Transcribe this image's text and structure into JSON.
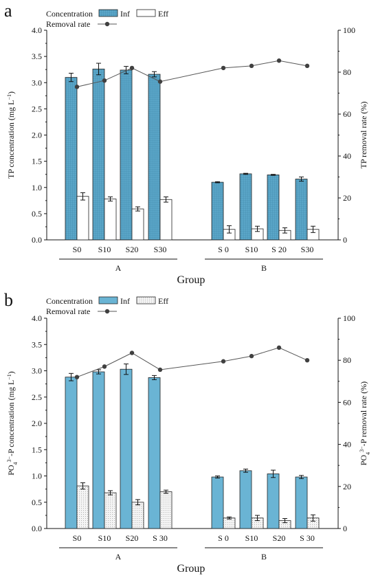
{
  "chart_data": [
    {
      "type": "bar",
      "panel_letter": "a",
      "legend_concentration": "Concentration",
      "legend_removal": "Removal rate",
      "groups": [
        "A",
        "B"
      ],
      "categories": [
        "S0",
        "S10",
        "S20",
        "S30",
        "S 0",
        "S10",
        "S 20",
        "S30"
      ],
      "series": [
        {
          "name": "Inf",
          "values": [
            3.1,
            3.26,
            3.24,
            3.16,
            1.1,
            1.26,
            1.24,
            1.16
          ],
          "errors": [
            0.08,
            0.11,
            0.07,
            0.05,
            0.01,
            0.01,
            0.01,
            0.04
          ]
        },
        {
          "name": "Eff",
          "values": [
            0.83,
            0.78,
            0.59,
            0.77,
            0.2,
            0.21,
            0.18,
            0.2
          ],
          "errors": [
            0.07,
            0.04,
            0.04,
            0.05,
            0.07,
            0.05,
            0.05,
            0.06
          ]
        }
      ],
      "removal_rate": [
        73,
        76,
        82,
        75.5,
        82,
        83,
        85.5,
        83
      ],
      "xlabel": "Group",
      "ylabel_html": "TP concentration (mg L<tspan baseline-shift=\"super\" font-size=\"8\">−1</tspan>)",
      "y2label_html": "TP removal rate (%)",
      "ylim": [
        0,
        4
      ],
      "y2lim": [
        0,
        100
      ],
      "yticks": [
        "0.0",
        "0.5",
        "1.0",
        "1.5",
        "2.0",
        "2.5",
        "3.0",
        "3.5",
        "4.0"
      ],
      "y2ticks": [
        "0",
        "20",
        "40",
        "60",
        "80",
        "100"
      ],
      "colors": {
        "inf": "#5aa6c8",
        "eff": "#ffffff",
        "line": "#555555",
        "marker": "#404040"
      },
      "eff_pattern": "none",
      "inf_pattern": "grid"
    },
    {
      "type": "bar",
      "panel_letter": "b",
      "legend_concentration": "Concentration",
      "legend_removal": "Removal rate",
      "groups": [
        "A",
        "B"
      ],
      "categories": [
        "S0",
        "S10",
        "S20",
        "S 30",
        "S 0",
        "S10",
        "S20",
        "S 30"
      ],
      "series": [
        {
          "name": "Inf",
          "values": [
            2.88,
            2.98,
            3.03,
            2.87,
            0.98,
            1.1,
            1.04,
            0.98
          ],
          "errors": [
            0.07,
            0.04,
            0.1,
            0.04,
            0.02,
            0.03,
            0.07,
            0.03
          ]
        },
        {
          "name": "Eff",
          "values": [
            0.81,
            0.68,
            0.5,
            0.7,
            0.2,
            0.2,
            0.15,
            0.2
          ],
          "errors": [
            0.06,
            0.04,
            0.05,
            0.03,
            0.02,
            0.05,
            0.04,
            0.06
          ]
        }
      ],
      "removal_rate": [
        72,
        77,
        83.5,
        75.5,
        79.5,
        82,
        86,
        80
      ],
      "xlabel": "Group",
      "ylabel_html": "PO<tspan baseline-shift=\"sub\" font-size=\"8\">4</tspan><tspan baseline-shift=\"super\" font-size=\"8\">3−</tspan>-P concentration (mg L<tspan baseline-shift=\"super\" font-size=\"8\">−1</tspan>)",
      "y2label_html": "PO<tspan baseline-shift=\"sub\" font-size=\"8\">4</tspan><tspan baseline-shift=\"super\" font-size=\"8\">3−</tspan>-P removal rate (%)",
      "ylim": [
        0,
        4
      ],
      "y2lim": [
        0,
        100
      ],
      "yticks": [
        "0.0",
        "0.5",
        "1.0",
        "1.5",
        "2.0",
        "2.5",
        "3.0",
        "3.5",
        "4.0"
      ],
      "y2ticks": [
        "0",
        "20",
        "40",
        "60",
        "80",
        "100"
      ],
      "colors": {
        "inf": "#6ab4d4",
        "eff": "#f2f2f2",
        "line": "#555555",
        "marker": "#404040"
      },
      "eff_pattern": "dots",
      "inf_pattern": "none"
    }
  ]
}
